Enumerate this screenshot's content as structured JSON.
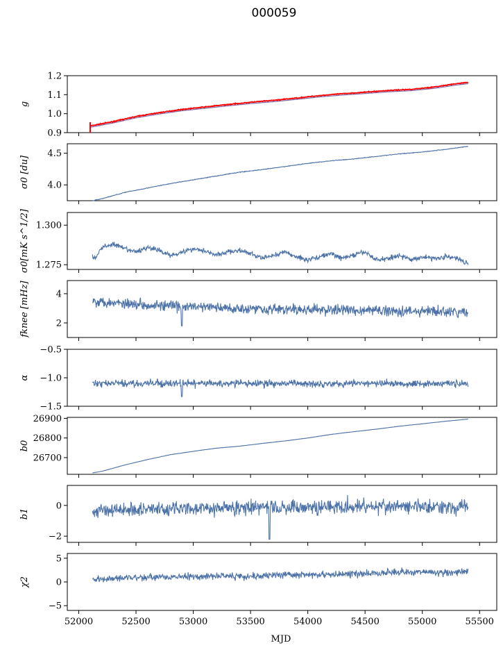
{
  "figure": {
    "title": "000059",
    "xlabel": "MJD"
  },
  "colors": {
    "series": "#4c72a8",
    "fit": "#ff0000",
    "fit_shadow": "#7b6aa6"
  },
  "chart_data": [
    {
      "type": "line",
      "ylabel": "g",
      "ylim": [
        0.9,
        1.2
      ],
      "yticks": [
        0.9,
        1.0,
        1.1,
        1.2
      ],
      "ytick_labels": [
        "0.9",
        "1.0",
        "1.1",
        "1.2"
      ],
      "x": [
        52100,
        52160,
        52300,
        52500,
        52700,
        52900,
        53100,
        53300,
        53500,
        53700,
        53900,
        54100,
        54300,
        54500,
        54700,
        54900,
        55100,
        55300,
        55400
      ],
      "y": [
        0.935,
        0.942,
        0.958,
        0.985,
        1.005,
        1.022,
        1.035,
        1.048,
        1.06,
        1.07,
        1.082,
        1.095,
        1.105,
        1.113,
        1.122,
        1.128,
        1.14,
        1.158,
        1.165
      ]
    },
    {
      "type": "line",
      "ylabel": "σ0 [du]",
      "ylim": [
        3.75,
        4.65
      ],
      "yticks": [
        4.0,
        4.5
      ],
      "ytick_labels": [
        "4.0",
        "4.5"
      ],
      "x": [
        52120,
        52200,
        52400,
        52600,
        52800,
        53000,
        53200,
        53400,
        53600,
        53800,
        54000,
        54200,
        54400,
        54600,
        54800,
        55000,
        55200,
        55400
      ],
      "y": [
        3.75,
        3.78,
        3.88,
        3.95,
        4.02,
        4.08,
        4.14,
        4.2,
        4.24,
        4.29,
        4.34,
        4.38,
        4.41,
        4.45,
        4.49,
        4.52,
        4.56,
        4.61
      ]
    },
    {
      "type": "line",
      "ylabel": "σ0[mK s^1/2]",
      "ylim": [
        1.272,
        1.308
      ],
      "yticks": [
        1.275,
        1.3
      ],
      "ytick_labels": [
        "1.275",
        "1.300"
      ],
      "x": [
        52120,
        52150,
        52200,
        52300,
        52400,
        52500,
        52600,
        52700,
        52800,
        52900,
        53000,
        53100,
        53200,
        53300,
        53400,
        53500,
        53600,
        53700,
        53800,
        53900,
        54000,
        54100,
        54200,
        54300,
        54400,
        54500,
        54600,
        54700,
        54800,
        54900,
        55000,
        55100,
        55200,
        55300,
        55400
      ],
      "y": [
        1.28,
        1.279,
        1.286,
        1.288,
        1.285,
        1.283,
        1.286,
        1.284,
        1.281,
        1.283,
        1.285,
        1.284,
        1.281,
        1.283,
        1.284,
        1.282,
        1.279,
        1.281,
        1.283,
        1.28,
        1.278,
        1.28,
        1.282,
        1.279,
        1.281,
        1.283,
        1.278,
        1.279,
        1.281,
        1.278,
        1.28,
        1.279,
        1.28,
        1.279,
        1.276
      ]
    },
    {
      "type": "line",
      "ylabel": "fknee [mHz]",
      "ylim": [
        1.0,
        4.9
      ],
      "yticks": [
        2,
        4
      ],
      "ytick_labels": [
        "2",
        "4"
      ],
      "x": [
        52120,
        52300,
        52500,
        52700,
        52900,
        53100,
        53300,
        53500,
        53700,
        53900,
        54100,
        54300,
        54500,
        54700,
        54900,
        55100,
        55300,
        55400
      ],
      "y": [
        3.5,
        3.4,
        3.3,
        3.2,
        3.1,
        3.1,
        3.0,
        3.0,
        2.95,
        2.9,
        2.9,
        2.9,
        2.85,
        2.85,
        2.8,
        2.8,
        2.7,
        2.75
      ]
    },
    {
      "type": "line",
      "ylabel": "α",
      "ylim": [
        -1.5,
        -0.5
      ],
      "yticks": [
        -1.5,
        -1.0,
        -0.5
      ],
      "ytick_labels": [
        "−1.5",
        "−1.0",
        "−0.5"
      ],
      "x": [
        52120,
        52500,
        53000,
        53500,
        54000,
        54500,
        55000,
        55400
      ],
      "y": [
        -1.1,
        -1.1,
        -1.1,
        -1.1,
        -1.1,
        -1.1,
        -1.1,
        -1.1
      ]
    },
    {
      "type": "line",
      "ylabel": "b0",
      "ylim": [
        26615,
        26905
      ],
      "yticks": [
        26700,
        26800,
        26900
      ],
      "ytick_labels": [
        "26700",
        "26800",
        "26900"
      ],
      "x": [
        52120,
        52200,
        52400,
        52600,
        52800,
        53000,
        53200,
        53400,
        53600,
        53800,
        54000,
        54200,
        54400,
        54600,
        54800,
        55000,
        55200,
        55400
      ],
      "y": [
        26622,
        26630,
        26662,
        26690,
        26715,
        26732,
        26748,
        26758,
        26772,
        26785,
        26800,
        26818,
        26832,
        26845,
        26860,
        26872,
        26885,
        26896
      ]
    },
    {
      "type": "line",
      "ylabel": "b1",
      "ylim": [
        -2.4,
        1.3
      ],
      "yticks": [
        -2,
        0
      ],
      "ytick_labels": [
        "−2",
        "0"
      ],
      "x": [
        52120,
        52500,
        53000,
        53500,
        54000,
        54500,
        55000,
        55400
      ],
      "y": [
        -0.3,
        -0.25,
        -0.2,
        -0.15,
        -0.1,
        -0.05,
        -0.1,
        -0.1
      ]
    },
    {
      "type": "line",
      "ylabel": "χ2",
      "ylim": [
        -6,
        6
      ],
      "yticks": [
        -5,
        0,
        5
      ],
      "ytick_labels": [
        "−5",
        "0",
        "5"
      ],
      "x": [
        52120,
        52300,
        52500,
        52700,
        52900,
        53100,
        53300,
        53500,
        53700,
        53900,
        54100,
        54300,
        54500,
        54700,
        54900,
        55100,
        55300,
        55400
      ],
      "y": [
        0.5,
        0.8,
        1.0,
        1.0,
        1.1,
        1.2,
        1.3,
        1.2,
        1.4,
        1.5,
        1.5,
        1.6,
        1.7,
        2.0,
        2.2,
        2.0,
        1.9,
        2.2
      ]
    }
  ],
  "x_axis": {
    "xlim": [
      51900,
      55650
    ],
    "ticks": [
      52000,
      52500,
      53000,
      53500,
      54000,
      54500,
      55000,
      55500
    ],
    "tick_labels": [
      "52000",
      "52500",
      "53000",
      "53500",
      "54000",
      "54500",
      "55000",
      "55500"
    ]
  }
}
